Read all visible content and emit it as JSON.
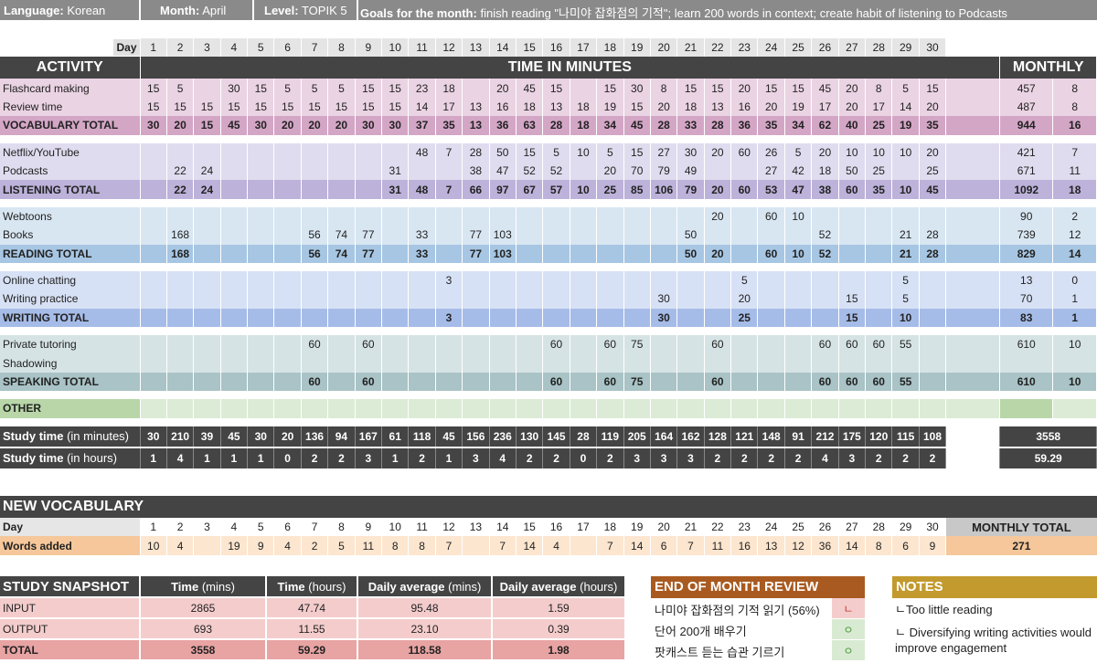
{
  "header": {
    "language_label": "Language:",
    "language": "Korean",
    "month_label": "Month:",
    "month": "April",
    "level_label": "Level:",
    "level": "TOPIK 5",
    "goals_label": "Goals for the month:",
    "goals": "finish reading \"나미야 잡화점의 기적\"; learn 200 words in context; create habit of listening to Podcasts"
  },
  "main": {
    "day_label": "Day",
    "days": [
      "1",
      "2",
      "3",
      "4",
      "5",
      "6",
      "7",
      "8",
      "9",
      "10",
      "11",
      "12",
      "13",
      "14",
      "15",
      "16",
      "17",
      "18",
      "19",
      "20",
      "21",
      "22",
      "23",
      "24",
      "25",
      "26",
      "27",
      "28",
      "29",
      "30"
    ],
    "activity_title": "ACTIVITY",
    "time_title": "TIME IN MINUTES",
    "monthly_title": "MONTHLY",
    "sections": [
      {
        "kind": "vocab",
        "rows": [
          {
            "label": "Flashcard making",
            "values": [
              "15",
              "5",
              "",
              "30",
              "15",
              "5",
              "5",
              "5",
              "15",
              "15",
              "23",
              "18",
              "",
              "20",
              "45",
              "15",
              "",
              "15",
              "30",
              "8",
              "15",
              "15",
              "20",
              "15",
              "15",
              "45",
              "20",
              "8",
              "5",
              "15"
            ],
            "total": "457",
            "days": "8"
          },
          {
            "label": "Review time",
            "values": [
              "15",
              "15",
              "15",
              "15",
              "15",
              "15",
              "15",
              "15",
              "15",
              "15",
              "14",
              "17",
              "13",
              "16",
              "18",
              "13",
              "18",
              "19",
              "15",
              "20",
              "18",
              "13",
              "16",
              "20",
              "19",
              "17",
              "20",
              "17",
              "14",
              "20"
            ],
            "total": "487",
            "days": "8"
          },
          {
            "label": "VOCABULARY TOTAL",
            "values": [
              "30",
              "20",
              "15",
              "45",
              "30",
              "20",
              "20",
              "20",
              "30",
              "30",
              "37",
              "35",
              "13",
              "36",
              "63",
              "28",
              "18",
              "34",
              "45",
              "28",
              "33",
              "28",
              "36",
              "35",
              "34",
              "62",
              "40",
              "25",
              "19",
              "35"
            ],
            "total": "944",
            "days": "16",
            "isTotal": true
          }
        ]
      },
      {
        "kind": "listen",
        "rows": [
          {
            "label": "Netflix/YouTube",
            "values": [
              "",
              "",
              "",
              "",
              "",
              "",
              "",
              "",
              "",
              "",
              "48",
              "7",
              "28",
              "50",
              "15",
              "5",
              "10",
              "5",
              "15",
              "27",
              "30",
              "20",
              "60",
              "26",
              "5",
              "20",
              "10",
              "10",
              "10",
              "20"
            ],
            "total": "421",
            "days": "7"
          },
          {
            "label": "Podcasts",
            "values": [
              "",
              "22",
              "24",
              "",
              "",
              "",
              "",
              "",
              "",
              "31",
              "",
              "",
              "38",
              "47",
              "52",
              "52",
              "",
              "20",
              "70",
              "79",
              "49",
              "",
              "",
              "27",
              "42",
              "18",
              "50",
              "25",
              "",
              "25"
            ],
            "total": "671",
            "days": "11"
          },
          {
            "label": "LISTENING TOTAL",
            "values": [
              "",
              "22",
              "24",
              "",
              "",
              "",
              "",
              "",
              "",
              "31",
              "48",
              "7",
              "66",
              "97",
              "67",
              "57",
              "10",
              "25",
              "85",
              "106",
              "79",
              "20",
              "60",
              "53",
              "47",
              "38",
              "60",
              "35",
              "10",
              "45"
            ],
            "total": "1092",
            "days": "18",
            "isTotal": true
          }
        ]
      },
      {
        "kind": "read",
        "rows": [
          {
            "label": "Webtoons",
            "values": [
              "",
              "",
              "",
              "",
              "",
              "",
              "",
              "",
              "",
              "",
              "",
              "",
              "",
              "",
              "",
              "",
              "",
              "",
              "",
              "",
              "",
              "20",
              "",
              "60",
              "10",
              "",
              "",
              "",
              "",
              ""
            ],
            "total": "90",
            "days": "2"
          },
          {
            "label": "Books",
            "values": [
              "",
              "168",
              "",
              "",
              "",
              "",
              "56",
              "74",
              "77",
              "",
              "33",
              "",
              "77",
              "103",
              "",
              "",
              "",
              "",
              "",
              "",
              "50",
              "",
              "",
              "",
              "",
              "52",
              "",
              "",
              "21",
              "28"
            ],
            "total": "739",
            "days": "12"
          },
          {
            "label": "READING TOTAL",
            "values": [
              "",
              "168",
              "",
              "",
              "",
              "",
              "56",
              "74",
              "77",
              "",
              "33",
              "",
              "77",
              "103",
              "",
              "",
              "",
              "",
              "",
              "",
              "50",
              "20",
              "",
              "60",
              "10",
              "52",
              "",
              "",
              "21",
              "28"
            ],
            "total": "829",
            "days": "14",
            "isTotal": true
          }
        ]
      },
      {
        "kind": "write",
        "rows": [
          {
            "label": "Online chatting",
            "values": [
              "",
              "",
              "",
              "",
              "",
              "",
              "",
              "",
              "",
              "",
              "",
              "3",
              "",
              "",
              "",
              "",
              "",
              "",
              "",
              "",
              "",
              "",
              "5",
              "",
              "",
              "",
              "",
              "",
              "5",
              ""
            ],
            "total": "13",
            "days": "0"
          },
          {
            "label": "Writing practice",
            "values": [
              "",
              "",
              "",
              "",
              "",
              "",
              "",
              "",
              "",
              "",
              "",
              "",
              "",
              "",
              "",
              "",
              "",
              "",
              "",
              "30",
              "",
              "",
              "20",
              "",
              "",
              "",
              "15",
              "",
              "5",
              ""
            ],
            "total": "70",
            "days": "1"
          },
          {
            "label": "WRITING TOTAL",
            "values": [
              "",
              "",
              "",
              "",
              "",
              "",
              "",
              "",
              "",
              "",
              "",
              "3",
              "",
              "",
              "",
              "",
              "",
              "",
              "",
              "30",
              "",
              "",
              "25",
              "",
              "",
              "",
              "15",
              "",
              "10",
              ""
            ],
            "total": "83",
            "days": "1",
            "isTotal": true
          }
        ]
      },
      {
        "kind": "speak",
        "rows": [
          {
            "label": "Private tutoring",
            "values": [
              "",
              "",
              "",
              "",
              "",
              "",
              "60",
              "",
              "60",
              "",
              "",
              "",
              "",
              "",
              "",
              "60",
              "",
              "60",
              "75",
              "",
              "",
              "60",
              "",
              "",
              "",
              "60",
              "60",
              "60",
              "55",
              ""
            ],
            "total": "610",
            "days": "10"
          },
          {
            "label": "Shadowing",
            "values": [
              "",
              "",
              "",
              "",
              "",
              "",
              "",
              "",
              "",
              "",
              "",
              "",
              "",
              "",
              "",
              "",
              "",
              "",
              "",
              "",
              "",
              "",
              "",
              "",
              "",
              "",
              "",
              "",
              "",
              ""
            ],
            "total": "",
            "days": ""
          },
          {
            "label": "SPEAKING TOTAL",
            "values": [
              "",
              "",
              "",
              "",
              "",
              "",
              "60",
              "",
              "60",
              "",
              "",
              "",
              "",
              "",
              "",
              "60",
              "",
              "60",
              "75",
              "",
              "",
              "60",
              "",
              "",
              "",
              "60",
              "60",
              "60",
              "55",
              ""
            ],
            "total": "610",
            "days": "10",
            "isTotal": true
          }
        ]
      }
    ],
    "other_label": "OTHER",
    "study_min_label": "Study time",
    "study_min_unit": "(in minutes)",
    "study_min": [
      "30",
      "210",
      "39",
      "45",
      "30",
      "20",
      "136",
      "94",
      "167",
      "61",
      "118",
      "45",
      "156",
      "236",
      "130",
      "145",
      "28",
      "119",
      "205",
      "164",
      "162",
      "128",
      "121",
      "148",
      "91",
      "212",
      "175",
      "120",
      "115",
      "108"
    ],
    "study_min_total": "3558",
    "study_hr_label": "Study time",
    "study_hr_unit": "(in hours)",
    "study_hr": [
      "1",
      "4",
      "1",
      "1",
      "1",
      "0",
      "2",
      "2",
      "3",
      "1",
      "2",
      "1",
      "3",
      "4",
      "2",
      "2",
      "0",
      "2",
      "3",
      "3",
      "3",
      "2",
      "2",
      "2",
      "2",
      "4",
      "3",
      "2",
      "2",
      "2"
    ],
    "study_hr_total": "59.29"
  },
  "new_vocab": {
    "title": "NEW VOCABULARY",
    "day_label": "Day",
    "words_label": "Words added",
    "monthly_total_label": "MONTHLY TOTAL",
    "words": [
      "10",
      "4",
      "",
      "19",
      "9",
      "4",
      "2",
      "5",
      "11",
      "8",
      "8",
      "7",
      "",
      "7",
      "14",
      "4",
      "",
      "7",
      "14",
      "6",
      "7",
      "11",
      "16",
      "13",
      "12",
      "36",
      "14",
      "8",
      "6",
      "9"
    ],
    "total": "271"
  },
  "snapshot": {
    "title": "STUDY SNAPSHOT",
    "headers": [
      {
        "b": "Time",
        "s": "(mins)"
      },
      {
        "b": "Time",
        "s": "(hours)"
      },
      {
        "b": "Daily average",
        "s": "(mins)"
      },
      {
        "b": "Daily average",
        "s": "(hours)"
      }
    ],
    "rows": [
      {
        "label": "INPUT",
        "vals": [
          "2865",
          "47.74",
          "95.48",
          "1.59"
        ]
      },
      {
        "label": "OUTPUT",
        "vals": [
          "693",
          "11.55",
          "23.10",
          "0.39"
        ]
      },
      {
        "label": "TOTAL",
        "vals": [
          "3558",
          "59.29",
          "118.58",
          "1.98"
        ]
      }
    ]
  },
  "review": {
    "title": "END OF MONTH REVIEW",
    "items": [
      {
        "text": "나미야 잡화점의 기적 읽기 (56%)",
        "mark": "ㄴ",
        "color": "#f4cccc"
      },
      {
        "text": "단어 200개 배우기",
        "mark": "ㅇ",
        "color": "#d9ead3"
      },
      {
        "text": "팟캐스트 듣는 습관 기르기",
        "mark": "ㅇ",
        "color": "#d9ead3"
      }
    ]
  },
  "notes": {
    "title": "NOTES",
    "items": [
      "ㄴToo little reading",
      "ㄴ Diversifying writing activities would improve engagement"
    ]
  }
}
